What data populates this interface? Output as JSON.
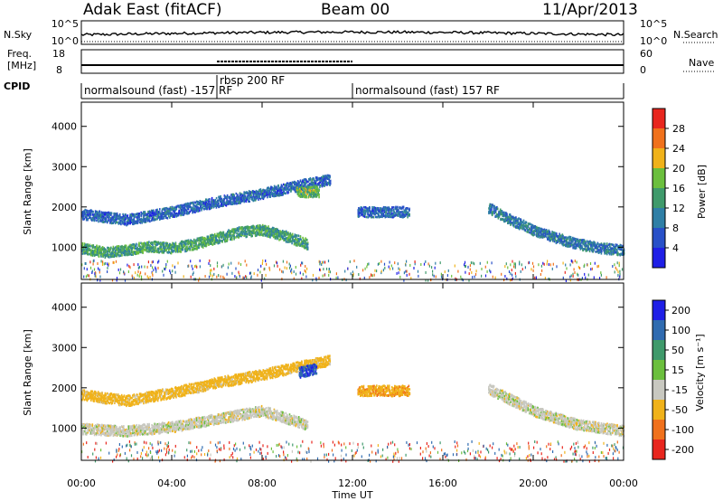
{
  "header": {
    "station": "Adak East (fitACF)",
    "beam": "Beam 00",
    "date": "11/Apr/2013"
  },
  "top_panels": {
    "nsky_label": "N.Sky",
    "nsky_ticks": [
      "10^5",
      "10^0"
    ],
    "nsearch_label": "N.Search",
    "freq_label_1": "Freq.",
    "freq_label_2": "[MHz]",
    "freq_ticks": [
      "18",
      "8"
    ],
    "nave_label": "Nave",
    "nave_ticks": [
      "60",
      "0"
    ],
    "cpid_label": "CPID"
  },
  "cpid_segments": [
    {
      "start": 0,
      "end": 12,
      "label": "normalsound (fast) -157 RF"
    },
    {
      "start": 6,
      "end": 12,
      "label": "rbsp 200 RF"
    },
    {
      "start": 12,
      "end": 24,
      "label": "normalsound (fast) 157 RF"
    }
  ],
  "colors": {
    "power_scale": [
      "#1f1fe6",
      "#2850c8",
      "#2f7fa6",
      "#3f9a6b",
      "#6bbf3d",
      "#f0b21a",
      "#f0711c",
      "#e8261e"
    ],
    "velocity_scale": [
      "#1f1fe6",
      "#2f6bb0",
      "#3f9a6b",
      "#6bbf3d",
      "#c8c8c0",
      "#f0b21a",
      "#f0711c",
      "#e8261e"
    ]
  },
  "chart_data": [
    {
      "type": "heatmap",
      "panel": "power",
      "xlabel": "",
      "ylabel": "Slant Range [km]",
      "xlim": [
        0,
        24
      ],
      "ylim": [
        200,
        4600
      ],
      "yticks": [
        1000,
        2000,
        3000,
        4000
      ],
      "colorbar": {
        "label": "Power [dB]",
        "range": [
          0,
          32
        ],
        "ticks": [
          "4",
          "8",
          "12",
          "16",
          "20",
          "24",
          "28"
        ]
      },
      "features": [
        {
          "name": "lower band",
          "x": [
            0,
            1,
            2,
            3,
            4,
            5,
            6,
            7,
            8,
            9,
            10
          ],
          "y": [
            1000,
            900,
            950,
            1050,
            1000,
            1100,
            1250,
            1400,
            1450,
            1300,
            1100
          ],
          "value_db": 14
        },
        {
          "name": "upper band",
          "x": [
            0,
            2,
            4,
            6,
            8,
            10,
            11
          ],
          "y": [
            1850,
            1700,
            1900,
            2150,
            2350,
            2600,
            2700
          ],
          "value_db": 8
        },
        {
          "name": "late band",
          "x": [
            18,
            19,
            20,
            21,
            22,
            23,
            24
          ],
          "y": [
            2000,
            1700,
            1450,
            1250,
            1100,
            1000,
            950
          ],
          "value_db": 10
        },
        {
          "name": "patch 13-15 UT",
          "x": [
            12.2,
            14.5
          ],
          "y": [
            1900,
            1900
          ],
          "value_db": 8
        },
        {
          "name": "patch 10 UT",
          "x": [
            9.5,
            10.5
          ],
          "y": [
            2400,
            2400
          ],
          "value_db": 16
        }
      ]
    },
    {
      "type": "heatmap",
      "panel": "velocity",
      "xlabel": "Time UT",
      "ylabel": "Slant Range [km]",
      "xlim": [
        0,
        24
      ],
      "ylim": [
        200,
        4600
      ],
      "xticks": [
        "00:00",
        "04:00",
        "08:00",
        "12:00",
        "16:00",
        "20:00",
        "00:00"
      ],
      "yticks": [
        1000,
        2000,
        3000,
        4000
      ],
      "colorbar": {
        "label": "Velocity [m s⁻¹]",
        "ticks": [
          "200",
          "100",
          "50",
          "15",
          "-15",
          "-50",
          "-100",
          "-200"
        ]
      },
      "features": [
        {
          "name": "lower band",
          "x": [
            0,
            2,
            4,
            6,
            8,
            10
          ],
          "y": [
            1000,
            950,
            1050,
            1250,
            1450,
            1100
          ],
          "value_ms": 0
        },
        {
          "name": "upper band",
          "x": [
            0,
            2,
            4,
            6,
            8,
            10,
            11
          ],
          "y": [
            1850,
            1700,
            1900,
            2150,
            2350,
            2600,
            2700
          ],
          "value_ms": -30
        },
        {
          "name": "late band",
          "x": [
            18,
            20,
            22,
            24
          ],
          "y": [
            2000,
            1450,
            1100,
            950
          ],
          "value_ms": 0
        },
        {
          "name": "blob 10 UT",
          "x": [
            9.6,
            10.4
          ],
          "y": [
            2400,
            2500
          ],
          "value_ms": 200
        },
        {
          "name": "patch 13-15 UT",
          "x": [
            12.2,
            14.5
          ],
          "y": [
            1950,
            1950
          ],
          "value_ms": -40
        }
      ]
    }
  ]
}
